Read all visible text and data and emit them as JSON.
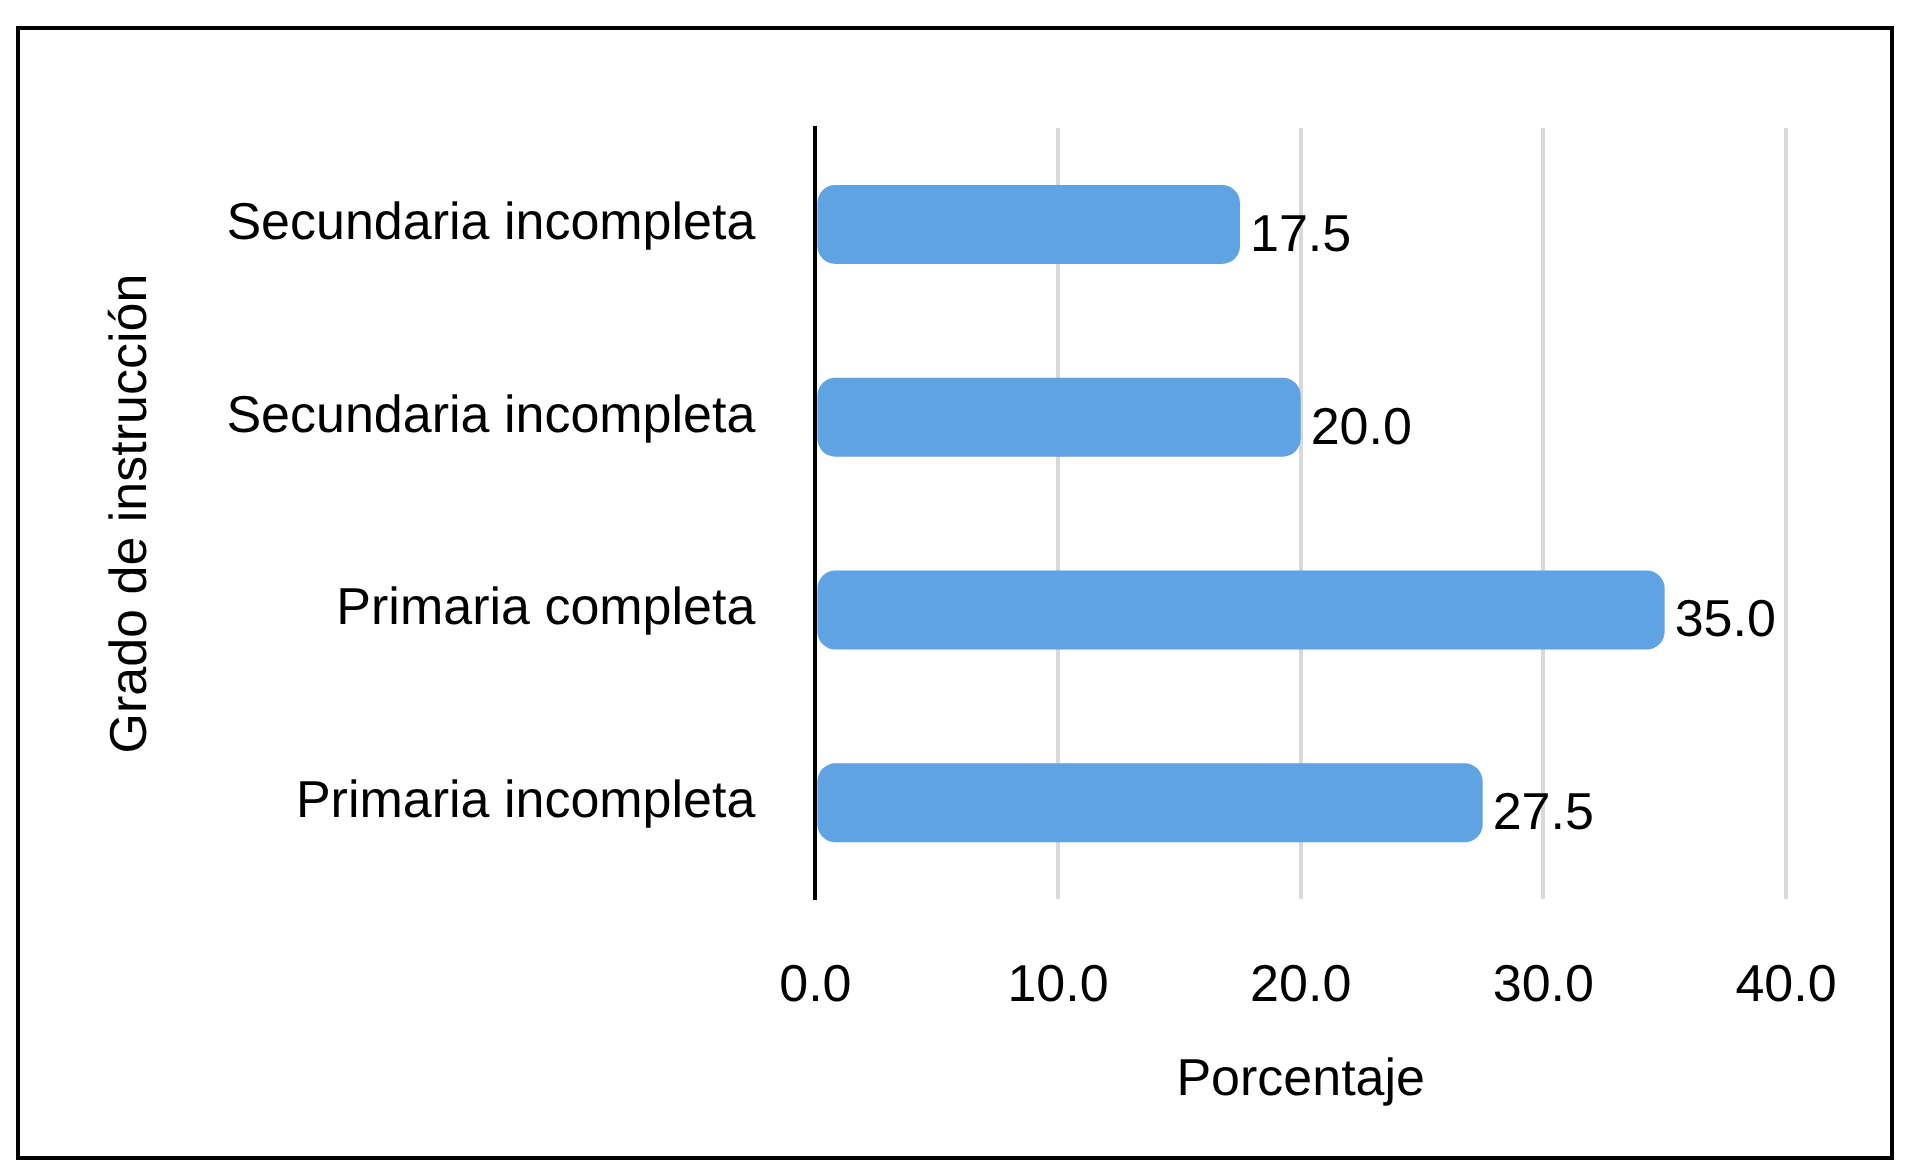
{
  "chart_data": {
    "type": "bar",
    "orientation": "horizontal",
    "categories": [
      "Secundaria incompleta",
      "Secundaria incompleta",
      "Primaria completa",
      "Primaria incompleta"
    ],
    "values": [
      17.5,
      20.0,
      35.0,
      27.5
    ],
    "value_labels": [
      "17.5",
      "20.0",
      "35.0",
      "27.5"
    ],
    "color": "#5fa3e2",
    "xlim": [
      0,
      40
    ],
    "xticks": [
      {
        "value": 0,
        "label": "0.0"
      },
      {
        "value": 10,
        "label": "10.0"
      },
      {
        "value": 20,
        "label": "20.0"
      },
      {
        "value": 30,
        "label": "30.0"
      },
      {
        "value": 40,
        "label": "40.0"
      }
    ],
    "xlabel": "Porcentaje",
    "ylabel": "Grado de instrucción",
    "grid": "x"
  }
}
